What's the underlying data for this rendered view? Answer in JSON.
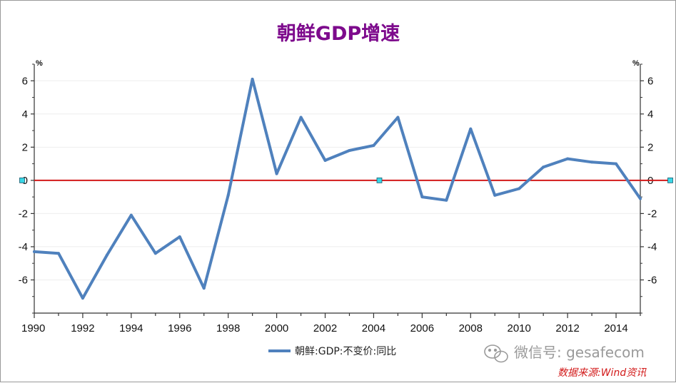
{
  "colors": {
    "title": "#7d0a8c",
    "series": "#4f81bd",
    "zero_line": "#d21a1a",
    "handle": "#39d7e6",
    "grid": "#eeeeee",
    "watermark": "#9a9a9a",
    "source": "#d21a1a"
  },
  "icons": {
    "watermark_logo": "wechat-icon"
  },
  "watermark": "微信号: gesafecom",
  "source_note": "数据来源:Wind资讯",
  "chart_data": {
    "type": "line",
    "title": "朝鲜GDP增速",
    "y_unit_left": "%",
    "y_unit_right": "%",
    "xlim": [
      1990,
      2015
    ],
    "ylim": [
      -8,
      7
    ],
    "x_ticks": [
      1990,
      1992,
      1994,
      1996,
      1998,
      2000,
      2002,
      2004,
      2006,
      2008,
      2010,
      2012,
      2014
    ],
    "x_tick_labels": [
      "1990",
      "1992",
      "1994",
      "1996",
      "1998",
      "2000",
      "2002",
      "2004",
      "2006",
      "2008",
      "2010",
      "2012",
      "2014"
    ],
    "y_ticks": [
      -6,
      -4,
      -2,
      0,
      2,
      4,
      6
    ],
    "y_tick_labels": [
      "-6",
      "-4",
      "-2",
      "0",
      "2",
      "4",
      "6"
    ],
    "grid": true,
    "legend_position": "bottom",
    "reference_line": 0,
    "series": [
      {
        "name": "朝鲜:GDP:不变价:同比",
        "x": [
          1990,
          1991,
          1992,
          1993,
          1994,
          1995,
          1996,
          1997,
          1998,
          1999,
          2000,
          2001,
          2002,
          2003,
          2004,
          2005,
          2006,
          2007,
          2008,
          2009,
          2010,
          2011,
          2012,
          2013,
          2014,
          2015
        ],
        "values": [
          -4.3,
          -4.4,
          -7.1,
          -4.5,
          -2.1,
          -4.4,
          -3.4,
          -6.5,
          -0.9,
          6.1,
          0.4,
          3.8,
          1.2,
          1.8,
          2.1,
          3.8,
          -1.0,
          -1.2,
          3.1,
          -0.9,
          -0.5,
          0.8,
          1.3,
          1.1,
          1.0,
          -1.1
        ]
      }
    ]
  }
}
